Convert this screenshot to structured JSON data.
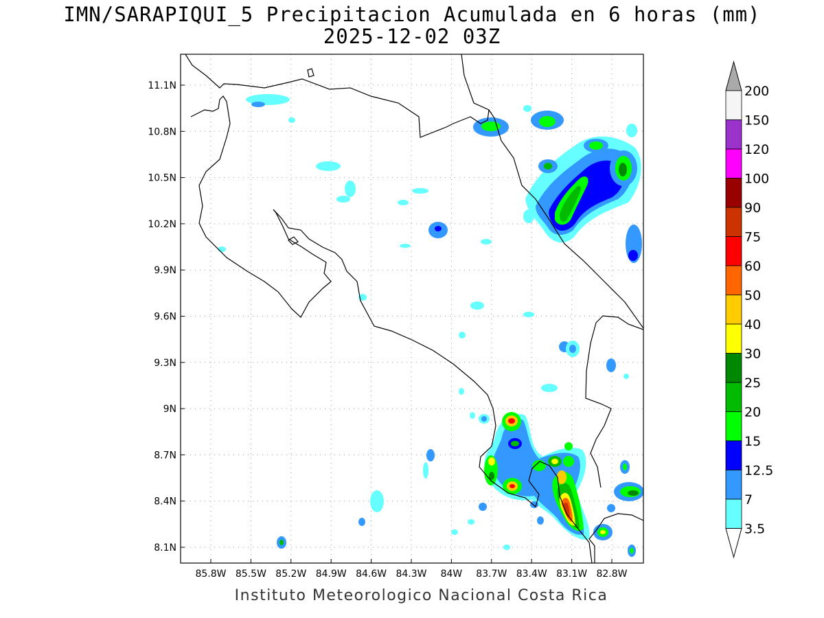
{
  "header": {
    "title_line1": "IMN/SARAPIQUI_5 Precipitacion Acumulada en 6 horas (mm)",
    "title_line2": "2025-12-02 03Z"
  },
  "footer": {
    "credit": "Instituto Meteorologico Nacional Costa Rica"
  },
  "map": {
    "lon_labels": [
      "85.8W",
      "85.5W",
      "85.2W",
      "84.9W",
      "84.6W",
      "84.3W",
      "84W",
      "83.7W",
      "83.4W",
      "83.1W",
      "82.8W"
    ],
    "lat_labels": [
      "11.1N",
      "10.8N",
      "10.5N",
      "10.2N",
      "9.9N",
      "9.6N",
      "9.3N",
      "9N",
      "8.7N",
      "8.4N",
      "8.1N"
    ],
    "grid": "dotted"
  },
  "colorbar": {
    "labels": [
      "200",
      "150",
      "120",
      "100",
      "90",
      "75",
      "60",
      "50",
      "40",
      "30",
      "25",
      "20",
      "15",
      "12.5",
      "7",
      "3.5"
    ],
    "colors": [
      "#aaaaaa",
      "#f5f5f5",
      "#9933cc",
      "#ff00ff",
      "#990000",
      "#cc3300",
      "#ff0000",
      "#ff6600",
      "#ffcc00",
      "#ffff00",
      "#008800",
      "#00bb00",
      "#00ff00",
      "#0000ff",
      "#3399ff",
      "#66ffff"
    ]
  }
}
